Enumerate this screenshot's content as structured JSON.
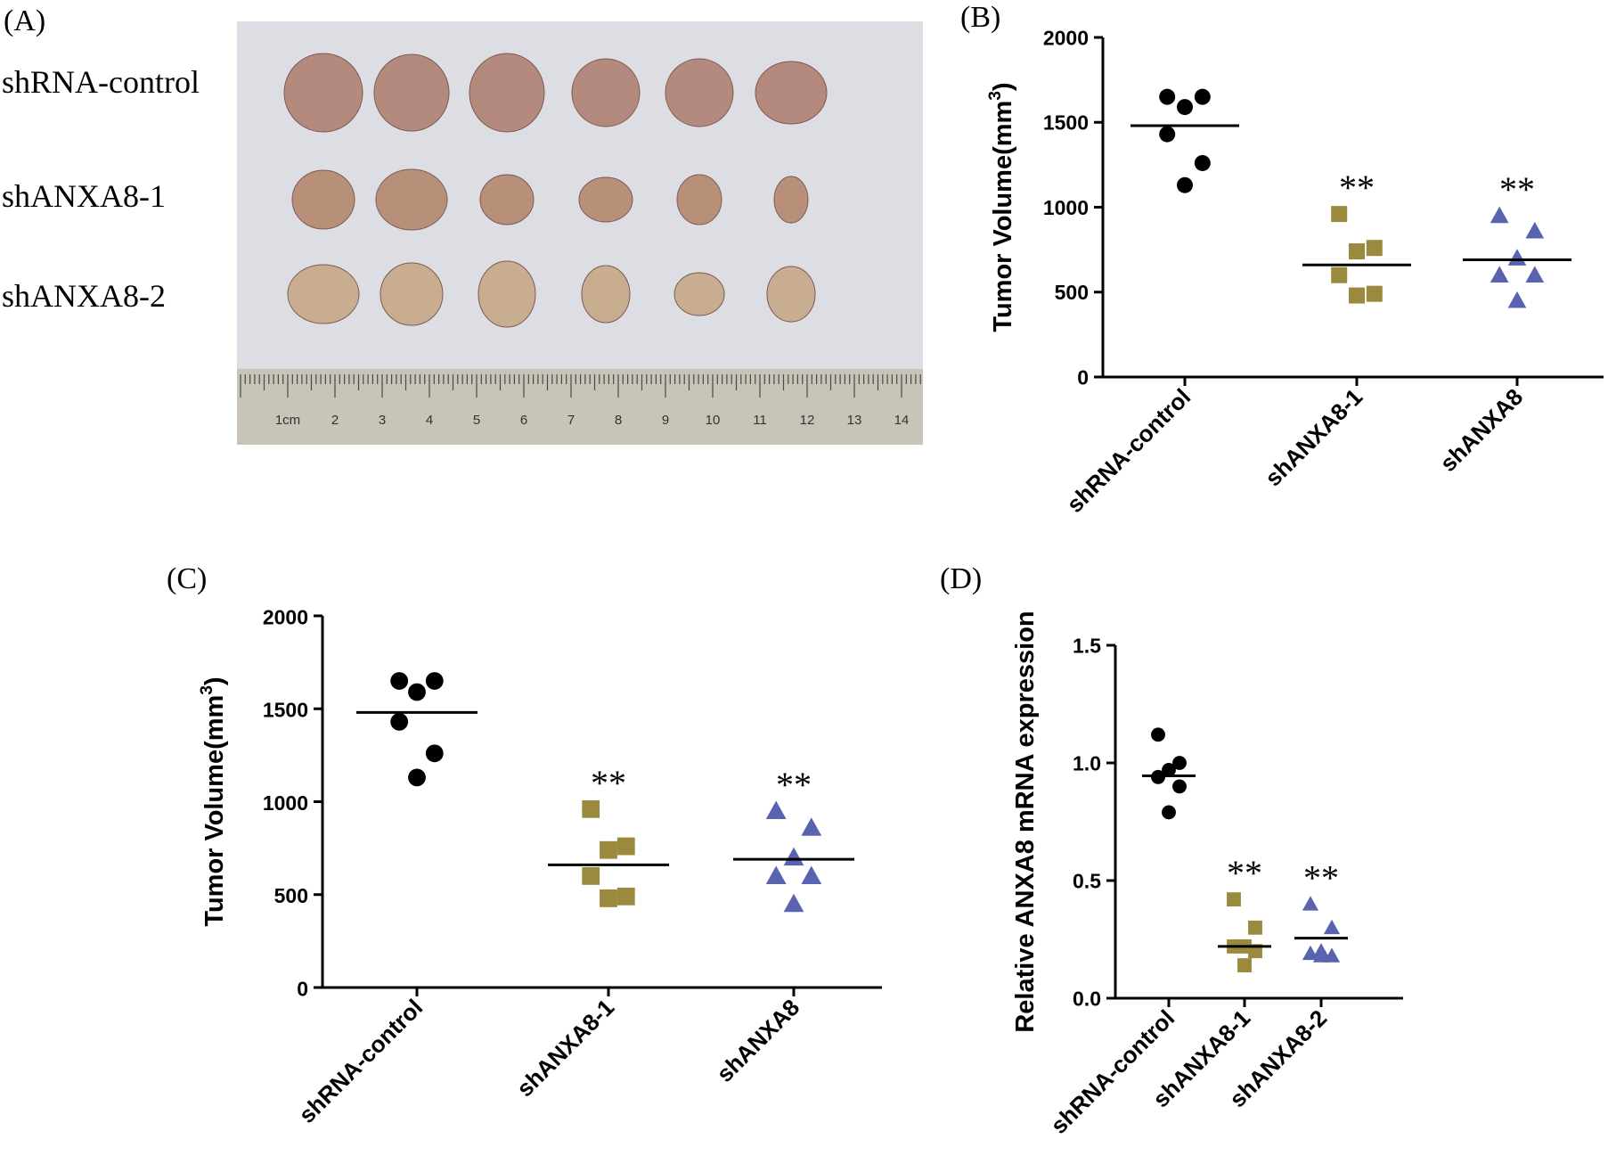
{
  "panel_labels": {
    "A": "(A)",
    "B": "(B)",
    "C": "(C)",
    "D": "(D)"
  },
  "photo": {
    "row_labels": [
      "shRNA-control",
      "shANXA8-1",
      "shANXA8-2"
    ],
    "ruler_numbers": [
      "1cm",
      "2",
      "3",
      "4",
      "5",
      "6",
      "7",
      "8",
      "9",
      "10",
      "11",
      "12",
      "13",
      "14"
    ]
  },
  "colors": {
    "control": "#000000",
    "shANXA8_1": "#9b8a3e",
    "shANXA8_2": "#5a63b0"
  },
  "chart_data": [
    {
      "panel": "B",
      "type": "scatter",
      "title": "",
      "ylabel": "Tumor Volume(mm",
      "ylabel_sup": "3",
      "ylabel_end": ")",
      "ylim": [
        0,
        2000
      ],
      "yticks": [
        0,
        500,
        1000,
        1500,
        2000
      ],
      "categories": [
        "shRNA-control",
        "shANXA8-1",
        "shANXA8"
      ],
      "series": [
        {
          "name": "shRNA-control",
          "marker": "circle",
          "points": [
            1650,
            1650,
            1590,
            1430,
            1260,
            1130
          ],
          "mean": 1480,
          "sig": ""
        },
        {
          "name": "shANXA8-1",
          "marker": "square",
          "points": [
            960,
            760,
            740,
            600,
            490,
            480
          ],
          "mean": 660,
          "sig": "**"
        },
        {
          "name": "shANXA8",
          "marker": "triangle",
          "points": [
            950,
            860,
            700,
            600,
            600,
            450
          ],
          "mean": 690,
          "sig": "**"
        }
      ]
    },
    {
      "panel": "C",
      "type": "scatter",
      "title": "",
      "ylabel": "Tumor Volume(mm",
      "ylabel_sup": "3",
      "ylabel_end": ")",
      "ylim": [
        0,
        2000
      ],
      "yticks": [
        0,
        500,
        1000,
        1500,
        2000
      ],
      "categories": [
        "shRNA-control",
        "shANXA8-1",
        "shANXA8"
      ],
      "series": [
        {
          "name": "shRNA-control",
          "marker": "circle",
          "points": [
            1650,
            1650,
            1590,
            1430,
            1260,
            1130
          ],
          "mean": 1480,
          "sig": ""
        },
        {
          "name": "shANXA8-1",
          "marker": "square",
          "points": [
            960,
            760,
            740,
            600,
            490,
            480
          ],
          "mean": 660,
          "sig": "**"
        },
        {
          "name": "shANXA8",
          "marker": "triangle",
          "points": [
            950,
            860,
            700,
            600,
            600,
            450
          ],
          "mean": 690,
          "sig": "**"
        }
      ]
    },
    {
      "panel": "D",
      "type": "scatter",
      "title": "",
      "ylabel": "Relative ANXA8  mRNA expression",
      "ylabel_sup": "",
      "ylabel_end": "",
      "ylim": [
        0,
        1.5
      ],
      "yticks": [
        0.0,
        0.5,
        1.0,
        1.5
      ],
      "ytick_labels": [
        "0.0",
        "0.5",
        "1.0",
        "1.5"
      ],
      "categories": [
        "shRNA-control",
        "shANXA8-1",
        "shANXA8-2"
      ],
      "series": [
        {
          "name": "shRNA-control",
          "marker": "circle",
          "points": [
            1.12,
            1.0,
            0.97,
            0.94,
            0.9,
            0.79
          ],
          "mean": 0.945,
          "sig": ""
        },
        {
          "name": "shANXA8-1",
          "marker": "square",
          "points": [
            0.42,
            0.3,
            0.22,
            0.22,
            0.2,
            0.14
          ],
          "mean": 0.22,
          "sig": "**"
        },
        {
          "name": "shANXA8-2",
          "marker": "triangle",
          "points": [
            0.4,
            0.3,
            0.2,
            0.19,
            0.18,
            0.18
          ],
          "mean": 0.255,
          "sig": "**"
        }
      ]
    }
  ]
}
